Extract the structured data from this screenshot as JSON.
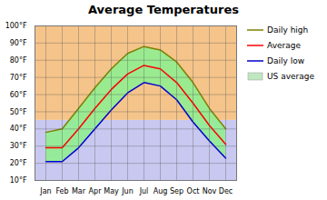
{
  "chart_data": {
    "type": "line",
    "title": "Average Temperatures",
    "categories": [
      "Jan",
      "Feb",
      "Mar",
      "Apr",
      "May",
      "Jun",
      "Jul",
      "Aug",
      "Sep",
      "Oct",
      "Nov",
      "Dec"
    ],
    "series": [
      {
        "name": "Daily high",
        "color": "#808000",
        "values": [
          38,
          40,
          52,
          64,
          75,
          84,
          88,
          86,
          79,
          67,
          52,
          40
        ]
      },
      {
        "name": "Average",
        "color": "#ff0000",
        "values": [
          29,
          29,
          40,
          52,
          63,
          72,
          77,
          75,
          67,
          55,
          42,
          31
        ]
      },
      {
        "name": "Daily low",
        "color": "#0000cc",
        "values": [
          21,
          21,
          29,
          40,
          51,
          61,
          67,
          65,
          57,
          44,
          33,
          23
        ]
      }
    ],
    "fill_between": {
      "lower": "Daily low",
      "upper": "Daily high",
      "color": "#90ee90"
    },
    "background": {
      "split": 45,
      "colors": [
        "#c8c8f0",
        "#f5c48a"
      ]
    },
    "legend_patches": [
      {
        "name": "US average",
        "color": "#c0e8c0"
      }
    ],
    "ylim": [
      10,
      100
    ],
    "yticks": [
      {
        "value": 10,
        "label": "10°F"
      },
      {
        "value": 20,
        "label": "20°F"
      },
      {
        "value": 30,
        "label": "30°F"
      },
      {
        "value": 40,
        "label": "40°F"
      },
      {
        "value": 50,
        "label": "50°F"
      },
      {
        "value": 60,
        "label": "60°F"
      },
      {
        "value": 70,
        "label": "70°F"
      },
      {
        "value": 80,
        "label": "80°F"
      },
      {
        "value": 90,
        "label": "90°F"
      },
      {
        "value": 100,
        "label": "100°F"
      }
    ],
    "grid": true,
    "legend": "right"
  }
}
